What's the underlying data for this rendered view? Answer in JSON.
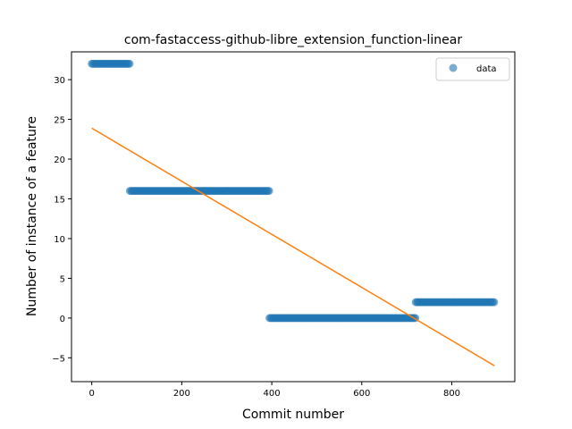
{
  "chart_data": {
    "type": "scatter",
    "title": "com-fastaccess-github-libre_extension_function-linear",
    "xlabel": "Commit number",
    "ylabel": "Number of instance of a feature",
    "xlim": [
      -45,
      940
    ],
    "ylim": [
      -8,
      33.5
    ],
    "xticks": [
      0,
      200,
      400,
      600,
      800
    ],
    "yticks": [
      -5,
      0,
      5,
      10,
      15,
      20,
      25,
      30
    ],
    "xtick_labels": [
      "0",
      "200",
      "400",
      "600",
      "800"
    ],
    "ytick_labels": [
      "−5",
      "0",
      "5",
      "10",
      "15",
      "20",
      "25",
      "30"
    ],
    "grid": false,
    "legend": {
      "position": "top-right",
      "entries": [
        "data"
      ]
    },
    "series": [
      {
        "name": "data",
        "kind": "scatter",
        "color": "#1f77b4",
        "segments": [
          {
            "x_start": 0,
            "x_end": 85,
            "y": 32
          },
          {
            "x_start": 85,
            "x_end": 395,
            "y": 16
          },
          {
            "x_start": 395,
            "x_end": 720,
            "y": 0
          },
          {
            "x_start": 720,
            "x_end": 895,
            "y": 2
          }
        ]
      },
      {
        "kind": "line",
        "color": "#ff7f0e",
        "x": [
          0,
          895
        ],
        "y": [
          23.9,
          -6.0
        ]
      }
    ]
  }
}
